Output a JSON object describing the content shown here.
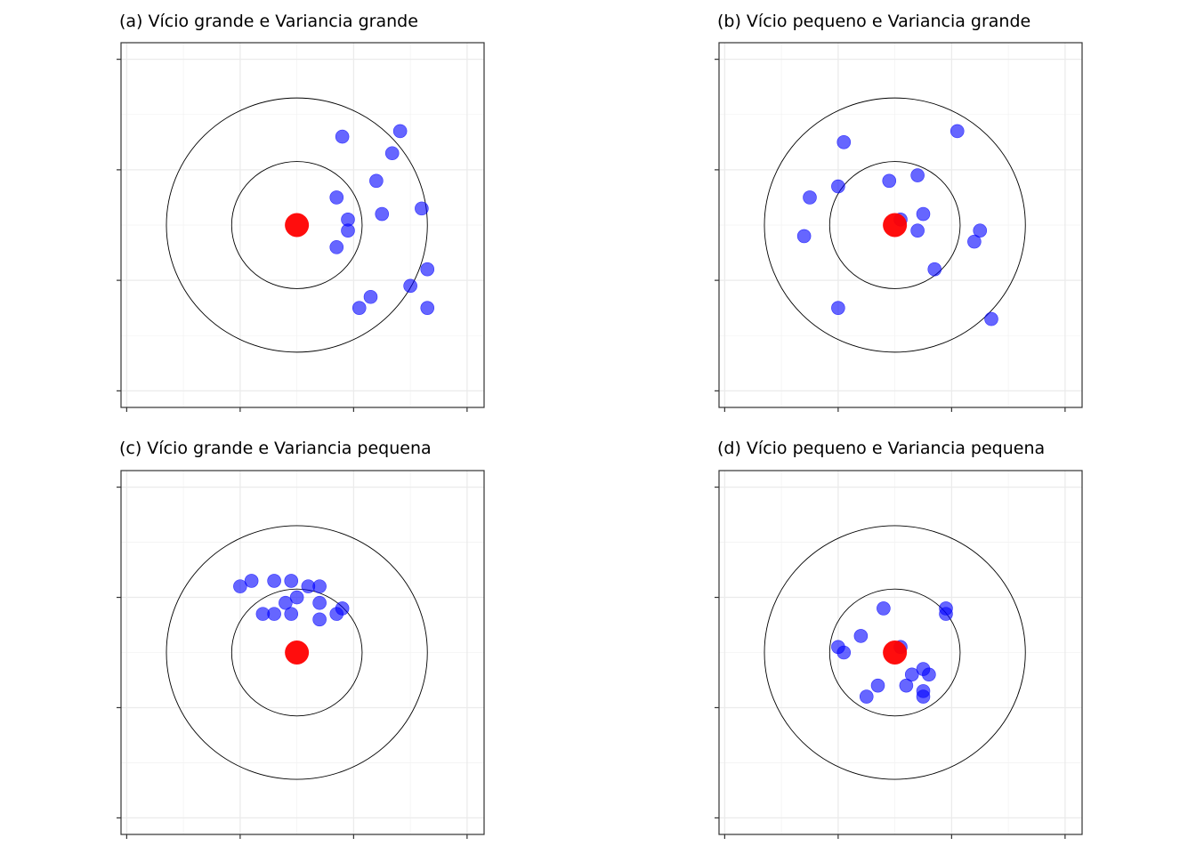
{
  "colors": {
    "point": "#0000ff",
    "point_opacity": 0.6,
    "center": "#ff0000",
    "ring": "#000000",
    "grid": "#ebebeb",
    "border": "#333333"
  },
  "chart_data": [
    {
      "type": "scatter",
      "title": "(a) Vício grande e Variancia grande",
      "xlabel": "",
      "ylabel": "",
      "xlim": [
        -3.1,
        3.3
      ],
      "ylim": [
        -3.3,
        3.3
      ],
      "x_ticks": [
        -3,
        -1,
        1,
        3
      ],
      "y_ticks": [
        -3,
        -1,
        1,
        3
      ],
      "grid": true,
      "rings": [
        {
          "radius": 1.15
        },
        {
          "radius": 2.3
        }
      ],
      "center": {
        "x": 0,
        "y": 0
      },
      "points": [
        {
          "x": 0.8,
          "y": 1.6
        },
        {
          "x": 1.82,
          "y": 1.7
        },
        {
          "x": 1.68,
          "y": 1.3
        },
        {
          "x": 1.4,
          "y": 0.8
        },
        {
          "x": 0.7,
          "y": 0.5
        },
        {
          "x": 2.2,
          "y": 0.3
        },
        {
          "x": 1.5,
          "y": 0.2
        },
        {
          "x": 0.9,
          "y": 0.1
        },
        {
          "x": 0.9,
          "y": -0.1
        },
        {
          "x": 0.7,
          "y": -0.4
        },
        {
          "x": 2.3,
          "y": -0.8
        },
        {
          "x": 2.0,
          "y": -1.1
        },
        {
          "x": 1.3,
          "y": -1.3
        },
        {
          "x": 1.1,
          "y": -1.5
        },
        {
          "x": 2.3,
          "y": -1.5
        }
      ]
    },
    {
      "type": "scatter",
      "title": "(b) Vício pequeno e Variancia grande",
      "xlabel": "",
      "ylabel": "",
      "xlim": [
        -3.1,
        3.3
      ],
      "ylim": [
        -3.3,
        3.3
      ],
      "x_ticks": [
        -3,
        -1,
        1,
        3
      ],
      "y_ticks": [
        -3,
        -1,
        1,
        3
      ],
      "grid": true,
      "rings": [
        {
          "radius": 1.15
        },
        {
          "radius": 2.3
        }
      ],
      "center": {
        "x": 0,
        "y": 0
      },
      "points": [
        {
          "x": -0.9,
          "y": 1.5
        },
        {
          "x": 1.1,
          "y": 1.7
        },
        {
          "x": -1.5,
          "y": 0.5
        },
        {
          "x": -1.0,
          "y": 0.7
        },
        {
          "x": -0.1,
          "y": 0.8
        },
        {
          "x": 0.4,
          "y": 0.9
        },
        {
          "x": 0.5,
          "y": 0.2
        },
        {
          "x": 0.1,
          "y": 0.1
        },
        {
          "x": 0.4,
          "y": -0.1
        },
        {
          "x": 1.5,
          "y": -0.1
        },
        {
          "x": 1.4,
          "y": -0.3
        },
        {
          "x": -1.6,
          "y": -0.2
        },
        {
          "x": 0.7,
          "y": -0.8
        },
        {
          "x": -1.0,
          "y": -1.5
        },
        {
          "x": 1.7,
          "y": -1.7
        }
      ]
    },
    {
      "type": "scatter",
      "title": "(c) Vício grande e Variancia pequena",
      "xlabel": "",
      "ylabel": "",
      "xlim": [
        -3.1,
        3.3
      ],
      "ylim": [
        -3.3,
        3.3
      ],
      "x_ticks": [
        -3,
        -1,
        1,
        3
      ],
      "y_ticks": [
        -3,
        -1,
        1,
        3
      ],
      "grid": true,
      "rings": [
        {
          "radius": 1.15
        },
        {
          "radius": 2.3
        }
      ],
      "center": {
        "x": 0,
        "y": 0
      },
      "points": [
        {
          "x": -1.0,
          "y": 1.2
        },
        {
          "x": -0.8,
          "y": 1.3
        },
        {
          "x": -0.4,
          "y": 1.3
        },
        {
          "x": -0.1,
          "y": 1.3
        },
        {
          "x": 0.2,
          "y": 1.2
        },
        {
          "x": 0.4,
          "y": 1.2
        },
        {
          "x": 0.0,
          "y": 1.0
        },
        {
          "x": -0.2,
          "y": 0.9
        },
        {
          "x": 0.4,
          "y": 0.9
        },
        {
          "x": 0.8,
          "y": 0.8
        },
        {
          "x": -0.6,
          "y": 0.7
        },
        {
          "x": -0.4,
          "y": 0.7
        },
        {
          "x": -0.1,
          "y": 0.7
        },
        {
          "x": 0.7,
          "y": 0.7
        },
        {
          "x": 0.4,
          "y": 0.6
        }
      ]
    },
    {
      "type": "scatter",
      "title": "(d) Vício pequeno e Variancia pequena",
      "xlabel": "",
      "ylabel": "",
      "xlim": [
        -3.1,
        3.3
      ],
      "ylim": [
        -3.3,
        3.3
      ],
      "x_ticks": [
        -3,
        -1,
        1,
        3
      ],
      "y_ticks": [
        -3,
        -1,
        1,
        3
      ],
      "grid": true,
      "rings": [
        {
          "radius": 1.15
        },
        {
          "radius": 2.3
        }
      ],
      "center": {
        "x": 0,
        "y": 0
      },
      "points": [
        {
          "x": 0.9,
          "y": 0.8
        },
        {
          "x": 0.9,
          "y": 0.7
        },
        {
          "x": -0.2,
          "y": 0.8
        },
        {
          "x": -0.6,
          "y": 0.3
        },
        {
          "x": -1.0,
          "y": 0.1
        },
        {
          "x": -0.9,
          "y": 0.0
        },
        {
          "x": 0.1,
          "y": 0.1
        },
        {
          "x": 0.5,
          "y": -0.3
        },
        {
          "x": 0.6,
          "y": -0.4
        },
        {
          "x": 0.3,
          "y": -0.4
        },
        {
          "x": 0.2,
          "y": -0.6
        },
        {
          "x": -0.3,
          "y": -0.6
        },
        {
          "x": 0.5,
          "y": -0.7
        },
        {
          "x": 0.5,
          "y": -0.8
        },
        {
          "x": -0.5,
          "y": -0.8
        }
      ]
    }
  ]
}
